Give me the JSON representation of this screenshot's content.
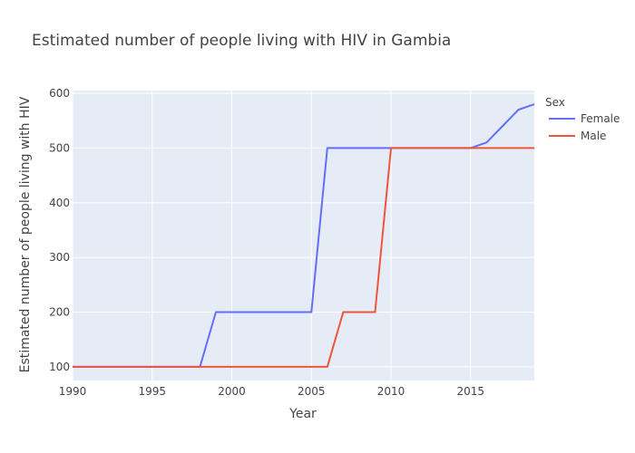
{
  "chart_data": {
    "type": "line",
    "title": "Estimated number of people living with HIV in Gambia",
    "xlabel": "Year",
    "ylabel": "Estimated number of people living with HIV",
    "xlim": [
      1990,
      2019
    ],
    "ylim": [
      75,
      605
    ],
    "xticks": [
      1990,
      1995,
      2000,
      2005,
      2010,
      2015
    ],
    "yticks": [
      100,
      200,
      300,
      400,
      500,
      600
    ],
    "grid": true,
    "legend": {
      "title": "Sex",
      "placement": "right"
    },
    "series": [
      {
        "name": "Female",
        "color": "#636efa",
        "x": [
          1990,
          1991,
          1992,
          1993,
          1994,
          1995,
          1996,
          1997,
          1998,
          1999,
          2000,
          2001,
          2002,
          2003,
          2004,
          2005,
          2006,
          2007,
          2008,
          2009,
          2010,
          2011,
          2012,
          2013,
          2014,
          2015,
          2016,
          2017,
          2018,
          2019
        ],
        "y": [
          100,
          100,
          100,
          100,
          100,
          100,
          100,
          100,
          100,
          200,
          200,
          200,
          200,
          200,
          200,
          200,
          500,
          500,
          500,
          500,
          500,
          500,
          500,
          500,
          500,
          500,
          510,
          540,
          570,
          580
        ]
      },
      {
        "name": "Male",
        "color": "#ef553b",
        "x": [
          1990,
          1991,
          1992,
          1993,
          1994,
          1995,
          1996,
          1997,
          1998,
          1999,
          2000,
          2001,
          2002,
          2003,
          2004,
          2005,
          2006,
          2007,
          2008,
          2009,
          2010,
          2011,
          2012,
          2013,
          2014,
          2015,
          2016,
          2017,
          2018,
          2019
        ],
        "y": [
          100,
          100,
          100,
          100,
          100,
          100,
          100,
          100,
          100,
          100,
          100,
          100,
          100,
          100,
          100,
          100,
          100,
          200,
          200,
          200,
          500,
          500,
          500,
          500,
          500,
          500,
          500,
          500,
          500,
          500
        ]
      }
    ]
  }
}
